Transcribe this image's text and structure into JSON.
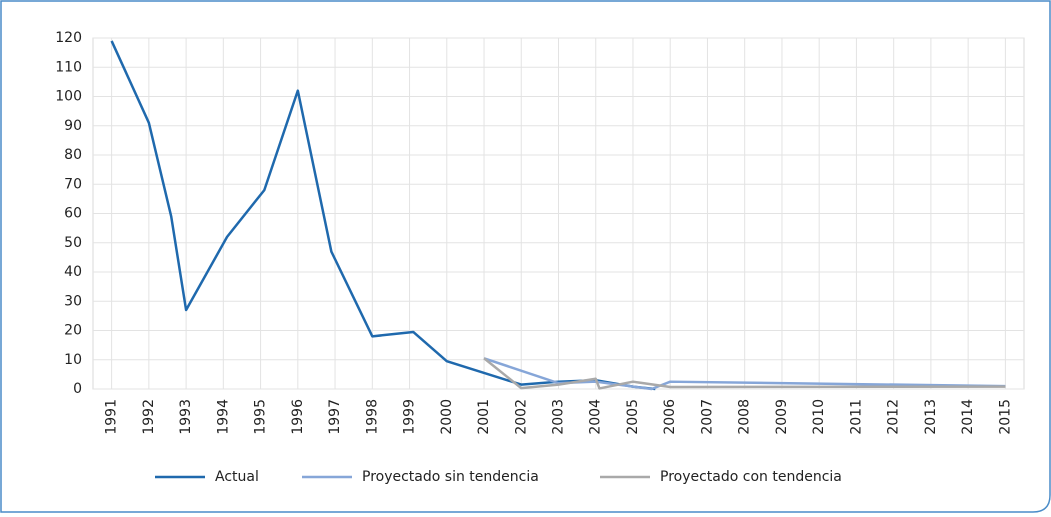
{
  "chart_data": {
    "type": "line",
    "series": [
      {
        "name": "Actual",
        "color": "#1f69ad",
        "x": [
          1991,
          1992,
          1992.6,
          1993,
          1994.1,
          1995.1,
          1996,
          1996.9,
          1998,
          1999.1,
          2000,
          2002,
          2003,
          2004,
          2005,
          2005.6
        ],
        "values": [
          119,
          91,
          59,
          27,
          52,
          68,
          102,
          47,
          18,
          19.5,
          9.5,
          1.5,
          2.5,
          3,
          0.8,
          0
        ]
      },
      {
        "name": "Proyectado sin tendencia",
        "color": "#86a6d8",
        "x": [
          2001,
          2003,
          2004,
          2005.5,
          2006,
          2015
        ],
        "values": [
          10.5,
          2,
          2.5,
          0,
          2.5,
          1
        ]
      },
      {
        "name": "Proyectado con tendencia",
        "color": "#a9a9a9",
        "x": [
          2001,
          2002,
          2003,
          2004,
          2004.1,
          2005,
          2006,
          2015
        ],
        "values": [
          10.5,
          0.3,
          1.5,
          3.5,
          0.2,
          2.5,
          0.7,
          0.8
        ]
      }
    ],
    "xlim": [
      1990.5,
      2015.5
    ],
    "xticks": [
      1991,
      1992,
      1993,
      1994,
      1995,
      1996,
      1997,
      1998,
      1999,
      2000,
      2001,
      2002,
      2003,
      2004,
      2005,
      2006,
      2007,
      2008,
      2009,
      2010,
      2011,
      2012,
      2013,
      2014,
      2015
    ],
    "ylim": [
      0,
      120
    ],
    "yticks": [
      0,
      10,
      20,
      30,
      40,
      50,
      60,
      70,
      80,
      90,
      100,
      110,
      120
    ],
    "grid": true
  }
}
